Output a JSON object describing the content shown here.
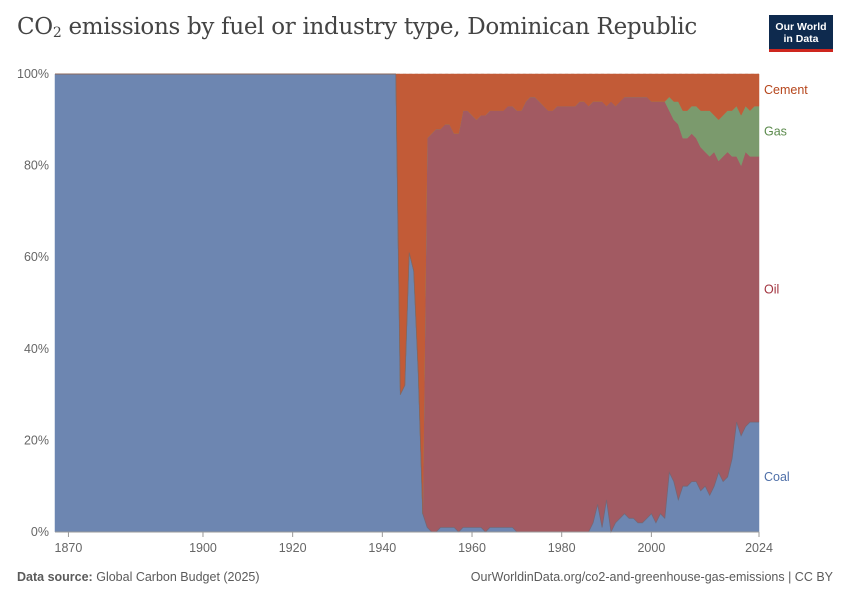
{
  "title_main": "CO",
  "title_sub": "2",
  "title_rest": " emissions by fuel or industry type, Dominican Republic",
  "logo": {
    "line1": "Our World",
    "line2": "in Data"
  },
  "footer": {
    "source_label": "Data source:",
    "source_value": "Global Carbon Budget (2025)",
    "url": "OurWorldinData.org/co2-and-greenhouse-gas-emissions | CC BY"
  },
  "colors": {
    "coal": "#6d86b1",
    "oil": "#a25a62",
    "gas": "#7b9a6d",
    "cement": "#c25b37",
    "coal_label": "#4e6fa8",
    "oil_label": "#a2343f",
    "gas_label": "#5b8a4c",
    "cement_label": "#b6461c"
  },
  "chart_data": {
    "type": "area",
    "stacked": true,
    "normalized": true,
    "title": "CO2 emissions by fuel or industry type, Dominican Republic",
    "xlabel": "",
    "ylabel": "",
    "xlim": [
      1867,
      2024
    ],
    "ylim": [
      0,
      100
    ],
    "x_ticks": [
      1870,
      1900,
      1920,
      1940,
      1960,
      1980,
      2000,
      2024
    ],
    "y_ticks": [
      0,
      20,
      40,
      60,
      80,
      100
    ],
    "y_tick_labels": [
      "0%",
      "20%",
      "40%",
      "60%",
      "80%",
      "100%"
    ],
    "series_order": [
      "Coal",
      "Oil",
      "Gas",
      "Cement"
    ],
    "x": [
      1867,
      1943,
      1944,
      1945,
      1946,
      1947,
      1948,
      1949,
      1950,
      1951,
      1952,
      1953,
      1954,
      1955,
      1956,
      1957,
      1958,
      1959,
      1960,
      1961,
      1962,
      1963,
      1964,
      1965,
      1966,
      1967,
      1968,
      1969,
      1970,
      1971,
      1972,
      1973,
      1974,
      1975,
      1976,
      1977,
      1978,
      1979,
      1980,
      1981,
      1982,
      1983,
      1984,
      1985,
      1986,
      1987,
      1988,
      1989,
      1990,
      1991,
      1992,
      1993,
      1994,
      1995,
      1996,
      1997,
      1998,
      1999,
      2000,
      2001,
      2002,
      2003,
      2004,
      2005,
      2006,
      2007,
      2008,
      2009,
      2010,
      2011,
      2012,
      2013,
      2014,
      2015,
      2016,
      2017,
      2018,
      2019,
      2020,
      2021,
      2022,
      2023,
      2024
    ],
    "series": [
      {
        "name": "Coal",
        "values": [
          100,
          100,
          30,
          32,
          61,
          57,
          35,
          4,
          1,
          0,
          0,
          1,
          1,
          1,
          1,
          0,
          1,
          1,
          1,
          1,
          1,
          0,
          1,
          1,
          1,
          1,
          1,
          1,
          0,
          0,
          0,
          0,
          0,
          0,
          0,
          0,
          0,
          0,
          0,
          0,
          0,
          0,
          0,
          0,
          0,
          2,
          6,
          1,
          7,
          0,
          2,
          3,
          4,
          3,
          3,
          2,
          2,
          3,
          4,
          2,
          4,
          3,
          13,
          11,
          7,
          10,
          10,
          11,
          11,
          9,
          10,
          8,
          10,
          13,
          11,
          12,
          16,
          24,
          21,
          23,
          24,
          24,
          24
        ]
      },
      {
        "name": "Oil",
        "values": [
          0,
          0,
          0,
          0,
          0,
          0,
          0,
          0,
          85,
          87,
          88,
          87,
          88,
          88,
          86,
          87,
          91,
          91,
          90,
          89,
          90,
          91,
          91,
          91,
          91,
          91,
          92,
          92,
          92,
          92,
          94,
          95,
          95,
          94,
          93,
          92,
          92,
          93,
          93,
          93,
          93,
          93,
          94,
          94,
          93,
          92,
          88,
          93,
          86,
          94,
          91,
          91,
          91,
          92,
          92,
          93,
          93,
          92,
          90,
          92,
          90,
          91,
          79,
          79,
          82,
          76,
          76,
          76,
          75,
          75,
          73,
          74,
          73,
          68,
          71,
          71,
          66,
          58,
          59,
          60,
          58,
          58,
          58
        ]
      },
      {
        "name": "Gas",
        "values": [
          0,
          0,
          0,
          0,
          0,
          0,
          0,
          0,
          0,
          0,
          0,
          0,
          0,
          0,
          0,
          0,
          0,
          0,
          0,
          0,
          0,
          0,
          0,
          0,
          0,
          0,
          0,
          0,
          0,
          0,
          0,
          0,
          0,
          0,
          0,
          0,
          0,
          0,
          0,
          0,
          0,
          0,
          0,
          0,
          0,
          0,
          0,
          0,
          0,
          0,
          0,
          0,
          0,
          0,
          0,
          0,
          0,
          0,
          0,
          0,
          0,
          0,
          3,
          4,
          5,
          6,
          6,
          6,
          7,
          8,
          9,
          10,
          8,
          9,
          9,
          9,
          10,
          11,
          11,
          10,
          10,
          11,
          11
        ]
      },
      {
        "name": "Cement",
        "values": [
          0,
          0,
          70,
          68,
          39,
          43,
          65,
          96,
          14,
          13,
          12,
          12,
          11,
          11,
          13,
          13,
          8,
          8,
          9,
          10,
          9,
          9,
          8,
          8,
          8,
          8,
          7,
          7,
          8,
          8,
          6,
          5,
          5,
          6,
          7,
          8,
          8,
          7,
          7,
          7,
          7,
          7,
          6,
          6,
          7,
          6,
          6,
          6,
          7,
          6,
          7,
          6,
          5,
          5,
          5,
          5,
          5,
          5,
          6,
          6,
          6,
          6,
          5,
          6,
          6,
          8,
          8,
          7,
          7,
          8,
          8,
          8,
          9,
          10,
          9,
          8,
          8,
          7,
          9,
          7,
          8,
          7,
          7
        ]
      }
    ],
    "end_labels": [
      "Cement",
      "Gas",
      "Oil",
      "Coal"
    ]
  }
}
